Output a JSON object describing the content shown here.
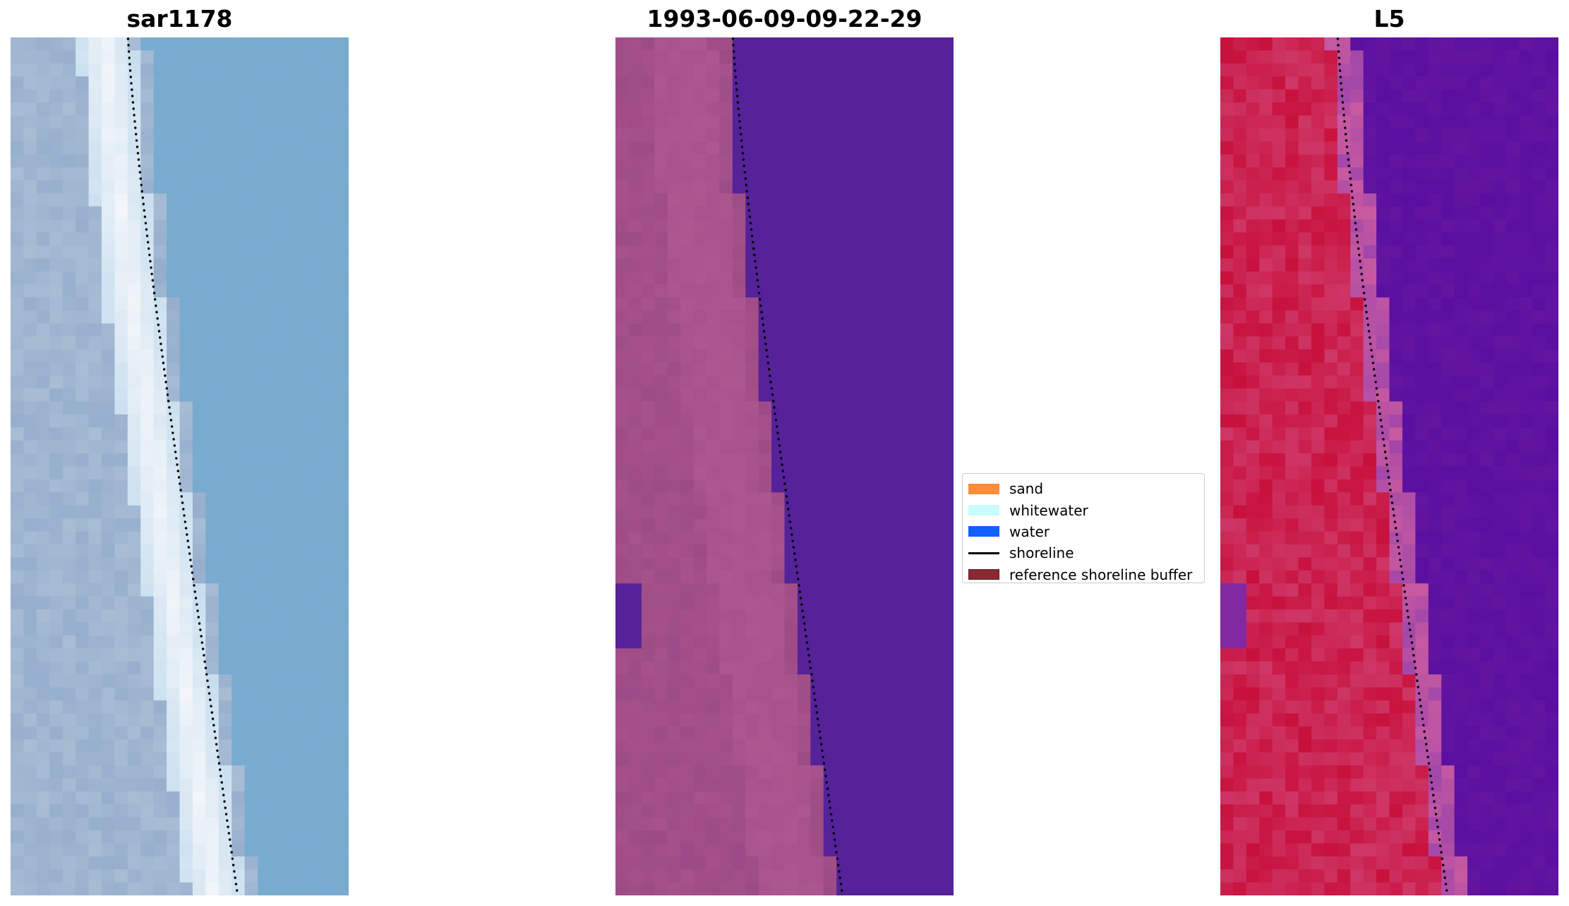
{
  "panels": [
    {
      "title": "sar1178",
      "kind": "rgb"
    },
    {
      "title": "1993-06-09-09-22-29",
      "kind": "classified"
    },
    {
      "title": "L5",
      "kind": "index"
    }
  ],
  "legend": {
    "items": [
      {
        "label": "sand",
        "type": "patch",
        "color": "#ff8c3a",
        "edge": "#ff8c3a"
      },
      {
        "label": "whitewater",
        "type": "patch",
        "color": "#c8fcfa",
        "edge": "#c8fcfa"
      },
      {
        "label": "water",
        "type": "patch",
        "color": "#1060ff",
        "edge": "#1060ff"
      },
      {
        "label": "shoreline",
        "type": "line",
        "color": "#000000"
      },
      {
        "label": "reference shoreline buffer",
        "type": "patch",
        "color": "#8c2832",
        "edge": "#5a1a20"
      }
    ]
  },
  "colors": {
    "water_rgb": "#7aabd0",
    "beach_white": "#f4f6fa",
    "sand_rgb": "#a8bcd4",
    "classified_water": "#552299",
    "classified_sand": "#a04e88",
    "index_red": "#c8103c",
    "index_purple": "#5a0fa0",
    "shoreline_dots": "#000000"
  }
}
